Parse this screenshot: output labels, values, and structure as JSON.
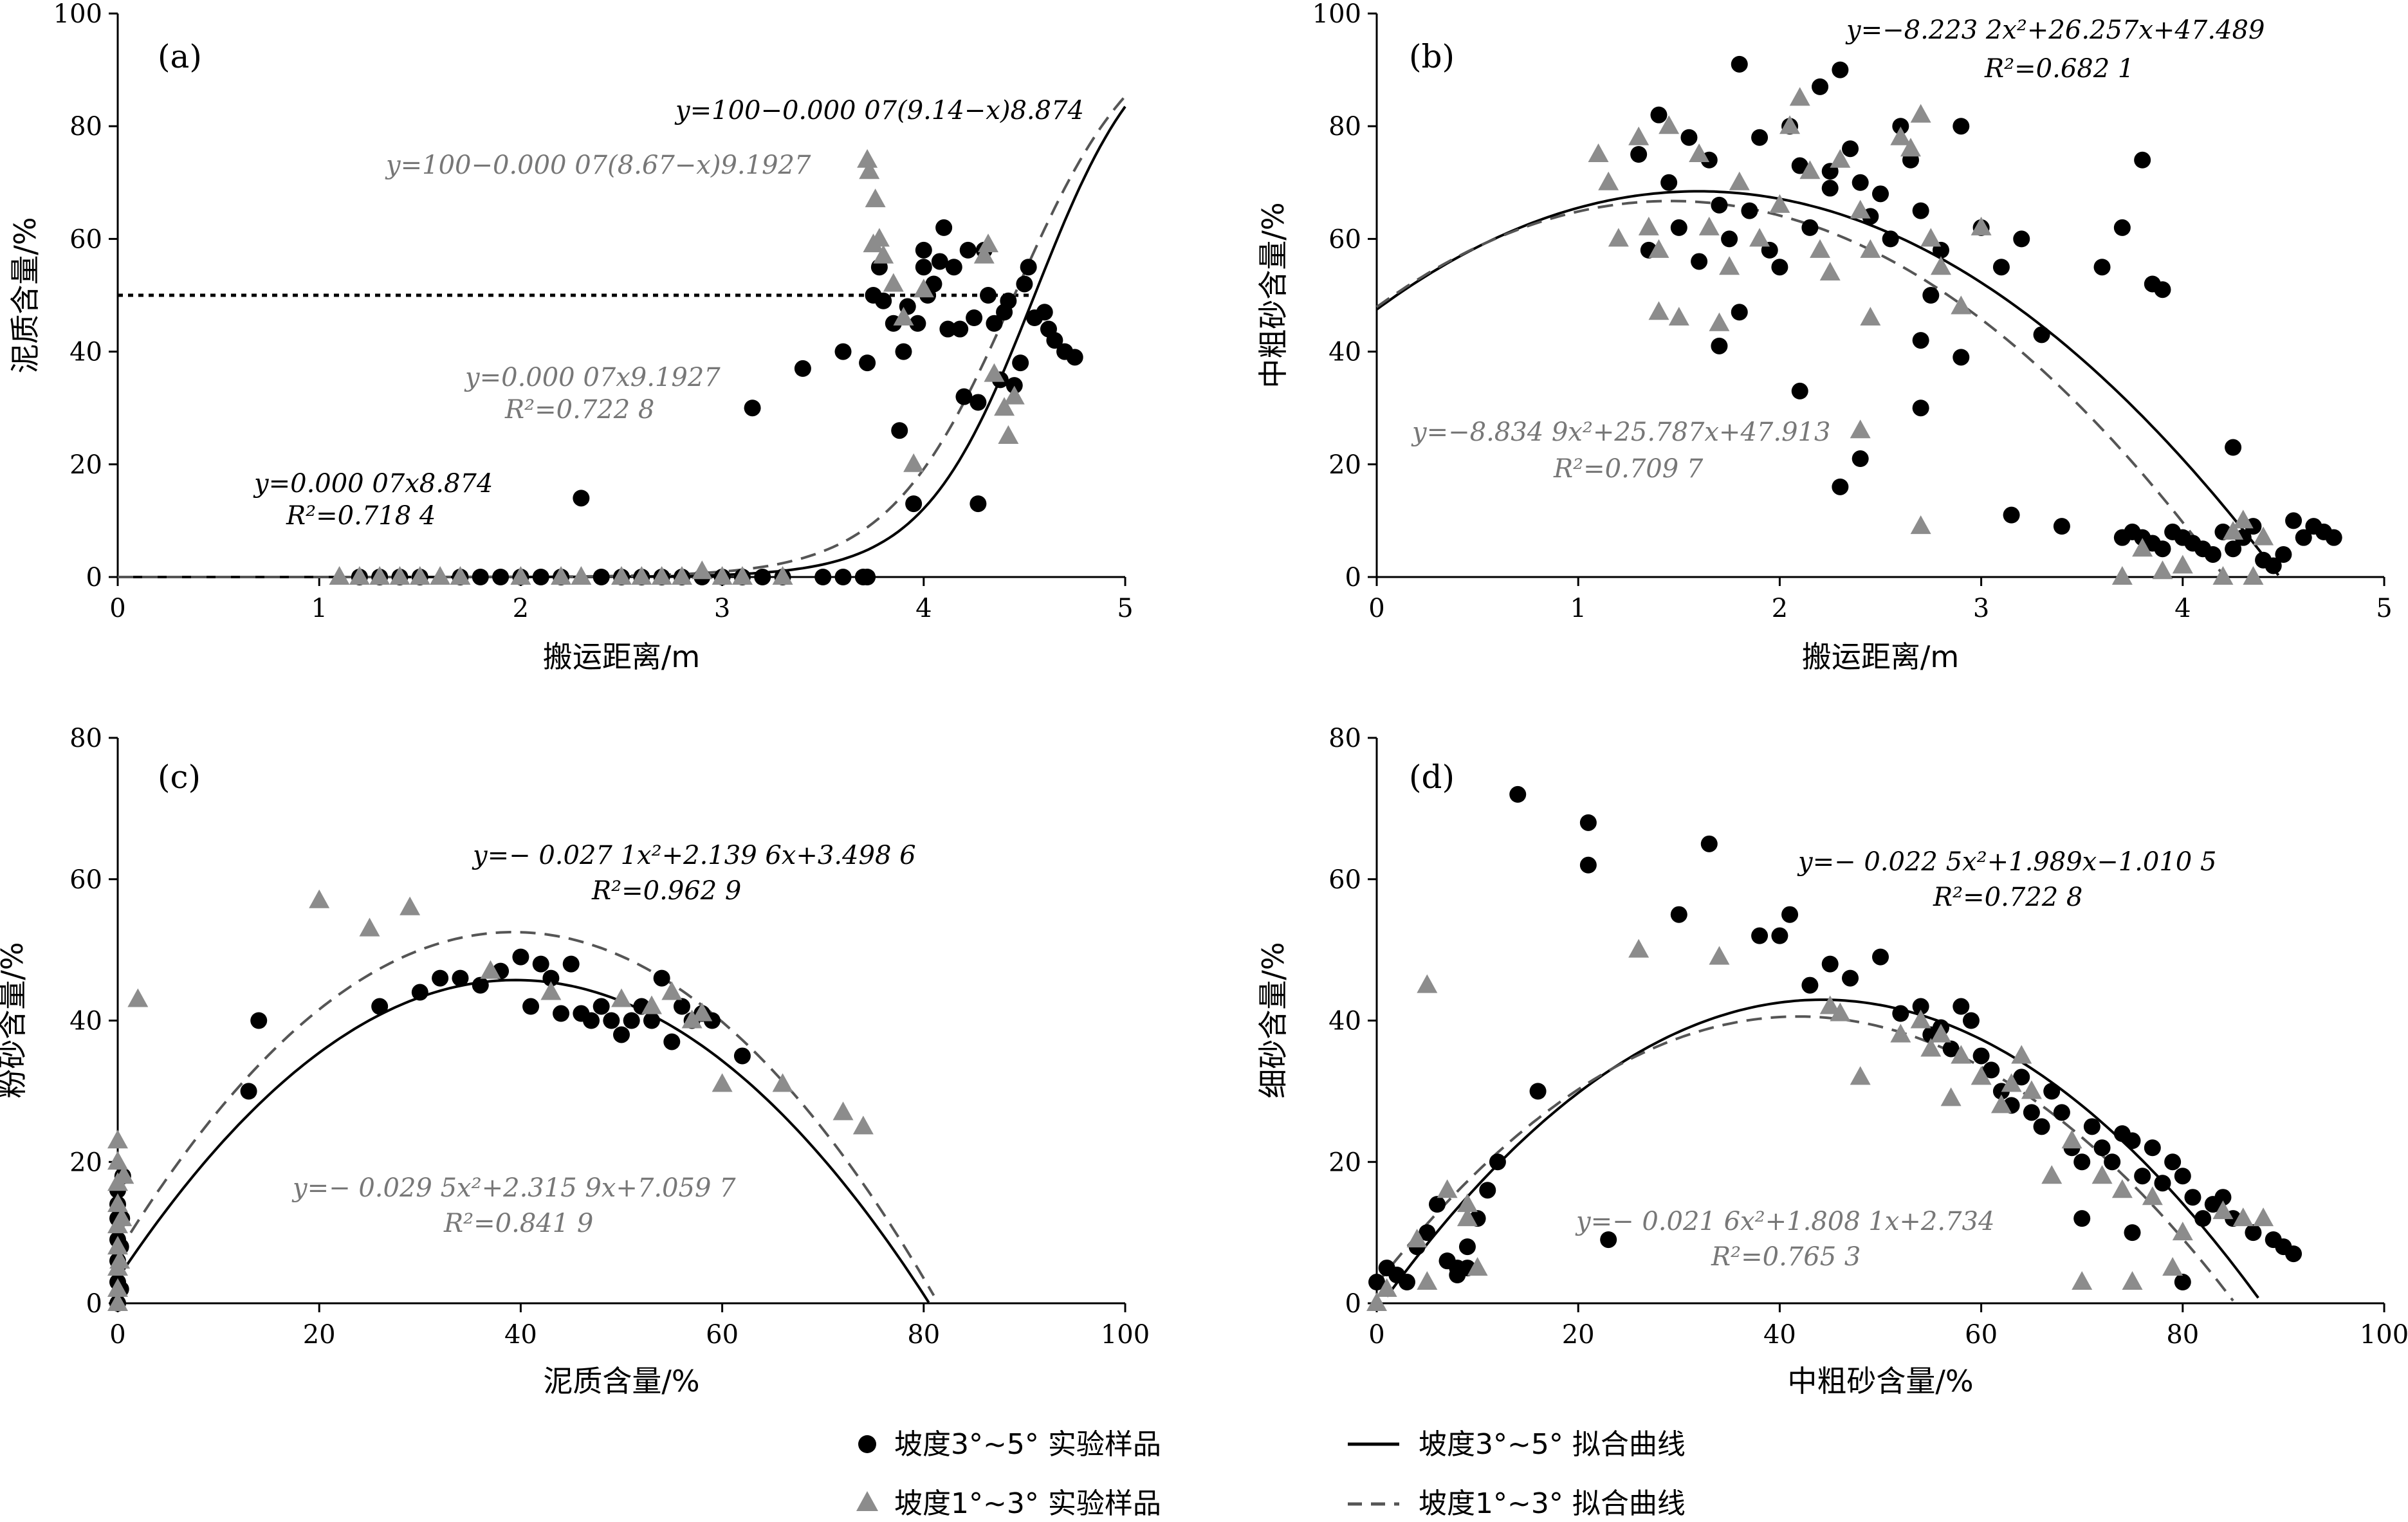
{
  "colors": {
    "black_series": "#000000",
    "gray_series": "#888888",
    "dashed_curve": "#555555"
  },
  "legend": {
    "dots_label": "坡度3°~5° 实验样品",
    "tri_label": "坡度1°~3° 实验样品",
    "solid_label": "坡度3°~5° 拟合曲线",
    "dashed_label": "坡度1°~3° 拟合曲线"
  },
  "chart_data": [
    {
      "panel": "(a)",
      "type": "scatter",
      "xlabel": "搬运距离/m",
      "ylabel": "泥质含量/%",
      "xlim": [
        0,
        5
      ],
      "ylim": [
        0,
        100
      ],
      "xticks": [
        "0",
        "1",
        "2",
        "3",
        "4",
        "5"
      ],
      "yticks": [
        "0",
        "20",
        "40",
        "60",
        "80",
        "100"
      ],
      "reference_line_y": 50,
      "annotations": [
        {
          "text": "y=100−0.000 07(9.14−x)8.874",
          "color": "#000000"
        },
        {
          "text": "y=100−0.000 07(8.67−x)9.1927",
          "color": "#777777"
        },
        {
          "text": "y=0.000 07x9.1927",
          "color": "#777777"
        },
        {
          "text": "R²=0.722 8",
          "color": "#777777"
        },
        {
          "text": "y=0.000 07x8.874",
          "color": "#000000"
        },
        {
          "text": "R²=0.718 4",
          "color": "#000000"
        }
      ],
      "series": [
        {
          "name": "坡度3°~5° 实验样品",
          "marker": "dot",
          "x": [
            1.2,
            1.3,
            1.4,
            1.5,
            1.7,
            1.8,
            1.9,
            2.0,
            2.1,
            2.2,
            2.4,
            2.5,
            2.6,
            2.7,
            2.8,
            2.9,
            3.0,
            3.1,
            3.2,
            3.3,
            3.5,
            3.6,
            3.7,
            3.72,
            2.3,
            3.15,
            3.4,
            3.6,
            3.72,
            3.75,
            3.78,
            3.8,
            3.85,
            3.88,
            3.9,
            3.92,
            3.95,
            3.97,
            4.0,
            4.0,
            4.02,
            4.05,
            4.08,
            4.1,
            4.12,
            4.15,
            4.18,
            4.2,
            4.22,
            4.25,
            4.27,
            4.3,
            4.32,
            4.35,
            4.38,
            4.4,
            4.42,
            4.45,
            4.48,
            4.5,
            4.52,
            4.55,
            4.6,
            4.62,
            4.65,
            4.7,
            4.75,
            4.27
          ],
          "y": [
            0,
            0,
            0,
            0,
            0,
            0,
            0,
            0,
            0,
            0,
            0,
            0,
            0,
            0,
            0,
            0,
            0,
            0,
            0,
            0,
            0,
            0,
            0,
            0,
            14,
            30,
            37,
            40,
            38,
            50,
            55,
            49,
            45,
            26,
            40,
            48,
            13,
            45,
            55,
            58,
            50,
            52,
            56,
            62,
            44,
            55,
            44,
            32,
            58,
            46,
            31,
            58,
            50,
            45,
            35,
            47,
            49,
            34,
            38,
            52,
            55,
            46,
            47,
            44,
            42,
            40,
            39,
            13
          ]
        },
        {
          "name": "坡度1°~3° 实验样品",
          "marker": "triangle",
          "x": [
            1.1,
            1.2,
            1.3,
            1.4,
            1.5,
            1.6,
            1.7,
            2.0,
            2.2,
            2.3,
            2.5,
            2.6,
            2.7,
            2.8,
            2.9,
            3.0,
            3.1,
            3.3,
            3.72,
            3.73,
            3.75,
            3.76,
            3.78,
            3.8,
            3.85,
            3.9,
            3.95,
            4.0,
            4.3,
            4.32,
            4.35,
            4.4,
            4.42,
            4.45
          ],
          "y": [
            0,
            0,
            0,
            0,
            0,
            0,
            0,
            0,
            0,
            0,
            0,
            0,
            0,
            0,
            1,
            0,
            0,
            0,
            74,
            72,
            59,
            67,
            60,
            57,
            52,
            46,
            20,
            51,
            57,
            59,
            36,
            30,
            25,
            32
          ]
        }
      ]
    },
    {
      "panel": "(b)",
      "type": "scatter",
      "xlabel": "搬运距离/m",
      "ylabel": "中粗砂含量/%",
      "xlim": [
        0,
        5
      ],
      "ylim": [
        0,
        100
      ],
      "xticks": [
        "0",
        "1",
        "2",
        "3",
        "4",
        "5"
      ],
      "yticks": [
        "0",
        "20",
        "40",
        "60",
        "80",
        "100"
      ],
      "annotations": [
        {
          "text": "y=−8.223 2x²+26.257x+47.489",
          "color": "#000000"
        },
        {
          "text": "R²=0.682 1",
          "color": "#000000"
        },
        {
          "text": "y=−8.834 9x²+25.787x+47.913",
          "color": "#777777"
        },
        {
          "text": "R²=0.709 7",
          "color": "#777777"
        }
      ],
      "series": [
        {
          "name": "坡度3°~5° 实验样品",
          "marker": "dot",
          "x": [
            1.3,
            1.35,
            1.4,
            1.45,
            1.5,
            1.55,
            1.6,
            1.65,
            1.7,
            1.75,
            1.8,
            1.85,
            1.9,
            1.95,
            2.0,
            2.05,
            2.1,
            2.15,
            2.2,
            2.25,
            2.3,
            2.35,
            2.4,
            2.45,
            2.5,
            2.55,
            2.6,
            2.65,
            2.7,
            2.75,
            2.8,
            2.9,
            3.0,
            3.1,
            3.2,
            3.3,
            1.7,
            2.1,
            2.3,
            2.4,
            2.7,
            3.15,
            3.4,
            3.6,
            3.7,
            3.75,
            3.8,
            3.85,
            3.9,
            3.95,
            4.0,
            4.05,
            4.1,
            4.15,
            4.2,
            4.25,
            4.3,
            4.35,
            4.4,
            4.45,
            4.5,
            4.55,
            4.6,
            4.65,
            4.7,
            4.75,
            1.8,
            2.25,
            2.7,
            2.9,
            3.8,
            3.85,
            3.9,
            4.25,
            3.7
          ],
          "y": [
            75,
            58,
            82,
            70,
            62,
            78,
            56,
            74,
            66,
            60,
            91,
            65,
            78,
            58,
            55,
            80,
            73,
            62,
            87,
            69,
            90,
            76,
            70,
            64,
            68,
            60,
            80,
            74,
            65,
            50,
            58,
            80,
            62,
            55,
            60,
            43,
            41,
            33,
            16,
            21,
            30,
            11,
            9,
            55,
            7,
            8,
            7,
            6,
            5,
            8,
            7,
            6,
            5,
            4,
            8,
            23,
            7,
            9,
            3,
            2,
            4,
            10,
            7,
            9,
            8,
            7,
            47,
            72,
            42,
            39,
            74,
            52,
            51,
            5,
            62
          ]
        },
        {
          "name": "坡度1°~3° 实验样品",
          "marker": "triangle",
          "x": [
            1.1,
            1.15,
            1.2,
            1.3,
            1.35,
            1.4,
            1.45,
            1.5,
            1.6,
            1.65,
            1.7,
            1.75,
            1.8,
            1.9,
            2.0,
            2.05,
            2.1,
            2.15,
            2.2,
            2.25,
            2.3,
            2.4,
            2.45,
            2.6,
            2.65,
            2.7,
            2.75,
            2.8,
            2.9,
            3.0,
            3.7,
            3.8,
            3.9,
            4.0,
            4.2,
            4.25,
            4.3,
            4.35,
            4.4,
            2.4,
            2.7,
            1.4,
            2.45
          ],
          "y": [
            75,
            70,
            60,
            78,
            62,
            58,
            80,
            46,
            75,
            62,
            45,
            55,
            70,
            60,
            66,
            80,
            85,
            72,
            58,
            54,
            74,
            65,
            58,
            78,
            76,
            82,
            60,
            55,
            48,
            62,
            0,
            5,
            1,
            2,
            0,
            8,
            10,
            0,
            7,
            26,
            9,
            47,
            46
          ]
        }
      ]
    },
    {
      "panel": "(c)",
      "type": "scatter",
      "xlabel": "泥质含量/%",
      "ylabel": "粉砂含量/%",
      "xlim": [
        0,
        100
      ],
      "ylim": [
        0,
        80
      ],
      "xticks": [
        "0",
        "20",
        "40",
        "60",
        "80",
        "100"
      ],
      "yticks": [
        "0",
        "20",
        "40",
        "60",
        "80"
      ],
      "annotations": [
        {
          "text": "y=− 0.027 1x²+2.139 6x+3.498 6",
          "color": "#000000"
        },
        {
          "text": "R²=0.962 9",
          "color": "#000000"
        },
        {
          "text": "y=− 0.029 5x²+2.315 9x+7.059 7",
          "color": "#777777"
        },
        {
          "text": "R²=0.841 9",
          "color": "#777777"
        }
      ],
      "series": [
        {
          "name": "坡度3°~5° 实验样品",
          "marker": "dot",
          "x": [
            0,
            0,
            0,
            0,
            0,
            0,
            0,
            0.3,
            0.3,
            0.4,
            0.5,
            13,
            14,
            26,
            30,
            32,
            34,
            36,
            38,
            40,
            41,
            42,
            43,
            44,
            45,
            46,
            47,
            48,
            49,
            50,
            51,
            52,
            53,
            54,
            55,
            56,
            57,
            58,
            59,
            62
          ],
          "y": [
            0,
            3,
            6,
            9,
            12,
            14,
            16,
            2,
            8,
            12,
            18,
            30,
            40,
            42,
            44,
            46,
            46,
            45,
            47,
            49,
            42,
            48,
            46,
            41,
            48,
            41,
            40,
            42,
            40,
            38,
            40,
            42,
            40,
            46,
            37,
            42,
            40,
            41,
            40,
            35
          ],
          "marker_note": ""
        },
        {
          "name": "坡度1°~3° 实验样品",
          "marker": "triangle",
          "x": [
            0,
            0,
            0,
            0,
            0,
            0,
            0,
            0,
            0,
            0.2,
            0.4,
            0.6,
            2,
            20,
            25,
            29,
            37,
            43,
            50,
            53,
            55,
            57,
            58,
            60,
            66,
            72,
            74
          ],
          "y": [
            0,
            2,
            5,
            8,
            11,
            14,
            17,
            20,
            23,
            6,
            12,
            18,
            43,
            57,
            53,
            56,
            47,
            44,
            43,
            42,
            44,
            40,
            41,
            31,
            31,
            27,
            25
          ]
        }
      ]
    },
    {
      "panel": "(d)",
      "type": "scatter",
      "xlabel": "中粗砂含量/%",
      "ylabel": "细砂含量/%",
      "xlim": [
        0,
        100
      ],
      "ylim": [
        0,
        80
      ],
      "xticks": [
        "0",
        "20",
        "40",
        "60",
        "80",
        "100"
      ],
      "yticks": [
        "0",
        "20",
        "40",
        "60",
        "80"
      ],
      "annotations": [
        {
          "text": "y=− 0.022 5x²+1.989x−1.010 5",
          "color": "#000000"
        },
        {
          "text": "R²=0.722 8",
          "color": "#000000"
        },
        {
          "text": "y=− 0.021 6x²+1.808 1x+2.734",
          "color": "#777777"
        },
        {
          "text": "R²=0.765 3",
          "color": "#777777"
        }
      ],
      "series": [
        {
          "name": "坡度3°~5° 实验样品",
          "marker": "dot",
          "x": [
            0,
            1,
            2,
            3,
            4,
            5,
            6,
            7,
            8,
            9,
            10,
            11,
            12,
            14,
            16,
            21,
            21,
            23,
            30,
            33,
            38,
            40,
            41,
            43,
            45,
            47,
            50,
            52,
            54,
            55,
            56,
            57,
            58,
            59,
            60,
            61,
            62,
            63,
            64,
            65,
            66,
            67,
            68,
            69,
            70,
            71,
            72,
            73,
            74,
            75,
            76,
            77,
            78,
            79,
            80,
            81,
            82,
            83,
            84,
            85,
            87,
            89,
            90,
            91,
            7,
            8,
            9,
            70,
            75,
            80
          ],
          "y": [
            3,
            5,
            4,
            3,
            8,
            10,
            14,
            6,
            4,
            5,
            12,
            16,
            20,
            72,
            30,
            62,
            68,
            9,
            55,
            65,
            52,
            52,
            55,
            45,
            48,
            46,
            49,
            41,
            42,
            38,
            39,
            36,
            42,
            40,
            35,
            33,
            30,
            28,
            32,
            27,
            25,
            30,
            27,
            22,
            20,
            25,
            22,
            20,
            24,
            23,
            18,
            22,
            17,
            20,
            18,
            15,
            12,
            14,
            15,
            12,
            10,
            9,
            8,
            7,
            6,
            5,
            8,
            12,
            10,
            3
          ]
        },
        {
          "name": "坡度1°~3° 实验样品",
          "marker": "triangle",
          "x": [
            0,
            1,
            4,
            5,
            7,
            9,
            10,
            26,
            34,
            45,
            46,
            48,
            52,
            54,
            55,
            56,
            57,
            58,
            60,
            62,
            63,
            64,
            65,
            67,
            69,
            70,
            72,
            74,
            75,
            77,
            79,
            80,
            84,
            86,
            88,
            5,
            9
          ],
          "y": [
            0,
            2,
            9,
            3,
            16,
            12,
            5,
            50,
            49,
            42,
            41,
            32,
            38,
            40,
            36,
            38,
            29,
            35,
            32,
            28,
            31,
            35,
            30,
            18,
            23,
            3,
            18,
            16,
            3,
            15,
            5,
            10,
            13,
            12,
            12,
            45,
            14
          ]
        }
      ]
    }
  ]
}
